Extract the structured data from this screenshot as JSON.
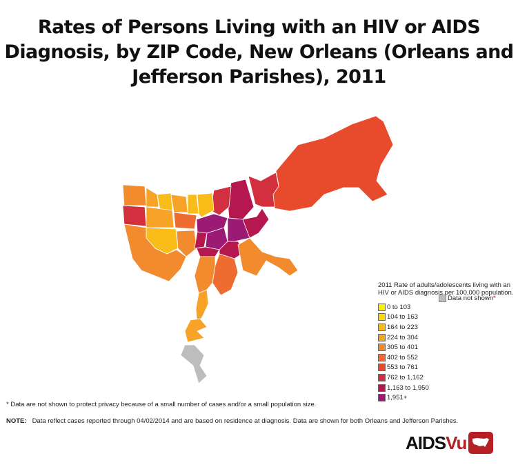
{
  "title": "Rates of Persons Living with an HIV or AIDS Diagnosis, by ZIP Code, New Orleans (Orleans and Jefferson Parishes), 2011",
  "legend": {
    "title": "2011 Rate of adults/adolescents living with an HIV or AIDS diagnosis per 100,000 population.",
    "items": [
      {
        "label": "0 to 103",
        "color": "#ffee00"
      },
      {
        "label": "104 to 163",
        "color": "#fcd80a"
      },
      {
        "label": "164 to 223",
        "color": "#f9bd1a"
      },
      {
        "label": "224 to 304",
        "color": "#f6a327"
      },
      {
        "label": "305 to 401",
        "color": "#f28a2e"
      },
      {
        "label": "402 to 552",
        "color": "#ee6c2f"
      },
      {
        "label": "553 to 761",
        "color": "#e84b2c"
      },
      {
        "label": "762 to 1,162",
        "color": "#d2303f"
      },
      {
        "label": "1,163 to 1,950",
        "color": "#b5174f"
      },
      {
        "label": "1,951+",
        "color": "#9b1b74"
      }
    ],
    "not_shown": {
      "label": "Data not shown",
      "marker": "*",
      "color": "#bdbdbd"
    }
  },
  "footnote": "* Data are not shown to protect privacy because of a small number of cases and/or a small population size.",
  "note": {
    "label": "NOTE:",
    "text": "Data reflect cases reported through 04/02/2014 and are based on residence at diagnosis. Data are shown for both Orleans and Jefferson Parishes."
  },
  "logo": {
    "text_a": "AIDS",
    "text_b": "Vu",
    "color": "#b52025"
  }
}
